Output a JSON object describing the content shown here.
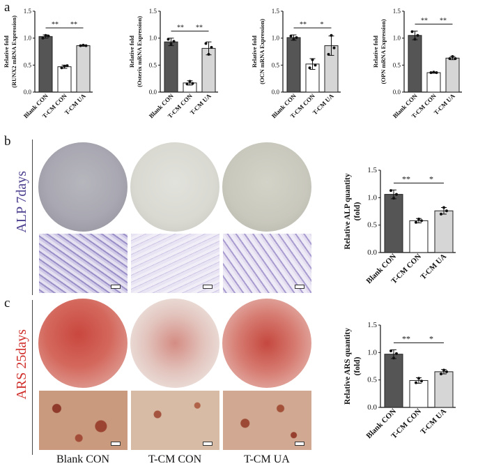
{
  "panels": {
    "a": "a",
    "b": "b",
    "c": "c"
  },
  "colors": {
    "dark": "#555555",
    "white": "#ffffff",
    "light": "#d6d6d6"
  },
  "chart_data": [
    {
      "id": "runx2",
      "type": "bar",
      "ylabel_line1": "Relative fold",
      "ylabel_line2": "(RUNX2 mRNA Expression)",
      "categories": [
        "Blank CON",
        "T-CM CON",
        "T-CM UA"
      ],
      "values": [
        1.03,
        0.47,
        0.86
      ],
      "errors": [
        0.03,
        0.03,
        0.01
      ],
      "points": [
        [
          1.0,
          1.05,
          1.04
        ],
        [
          0.45,
          0.48,
          0.49
        ],
        [
          0.86,
          0.87,
          0.86
        ]
      ],
      "ylim": [
        0,
        1.5
      ],
      "yticks": [
        "0.0",
        "0.5",
        "1.0",
        "1.5"
      ],
      "sig": [
        {
          "from": 0,
          "to": 1,
          "label": "**"
        },
        {
          "from": 1,
          "to": 2,
          "label": "**"
        }
      ]
    },
    {
      "id": "osterix",
      "type": "bar",
      "ylabel_line1": "Relative fold",
      "ylabel_line2": "(Osterix mRNA Expression)",
      "categories": [
        "Blank CON",
        "T-CM CON",
        "T-CM UA"
      ],
      "values": [
        0.93,
        0.17,
        0.81
      ],
      "errors": [
        0.07,
        0.04,
        0.12
      ],
      "points": [
        [
          0.98,
          0.89,
          0.94
        ],
        [
          0.15,
          0.2,
          0.16
        ],
        [
          0.9,
          0.7,
          0.83
        ]
      ],
      "ylim": [
        0,
        1.5
      ],
      "yticks": [
        "0.0",
        "0.5",
        "1.0",
        "1.5"
      ],
      "sig": [
        {
          "from": 0,
          "to": 1,
          "label": "**"
        },
        {
          "from": 1,
          "to": 2,
          "label": "**"
        }
      ]
    },
    {
      "id": "ocn",
      "type": "bar",
      "ylabel_line1": "Relative fold",
      "ylabel_line2": "(OCN mRNA Expression)",
      "categories": [
        "Blank CON",
        "T-CM CON",
        "T-CM UA"
      ],
      "values": [
        1.01,
        0.52,
        0.86
      ],
      "errors": [
        0.05,
        0.1,
        0.18
      ],
      "points": [
        [
          1.04,
          0.98,
          1.01
        ],
        [
          0.45,
          0.6,
          0.5
        ],
        [
          0.7,
          1.05,
          0.82
        ]
      ],
      "ylim": [
        0,
        1.5
      ],
      "yticks": [
        "0.0",
        "0.5",
        "1.0",
        "1.5"
      ],
      "sig": [
        {
          "from": 0,
          "to": 1,
          "label": "**"
        },
        {
          "from": 1,
          "to": 2,
          "label": "*"
        }
      ]
    },
    {
      "id": "opn",
      "type": "bar",
      "ylabel_line1": "Relative fold",
      "ylabel_line2": "(OPN mRNA Expression)",
      "categories": [
        "Blank CON",
        "T-CM CON",
        "T-CM UA"
      ],
      "values": [
        1.05,
        0.36,
        0.63
      ],
      "errors": [
        0.08,
        0.01,
        0.03
      ],
      "points": [
        [
          1.12,
          0.98,
          1.05
        ],
        [
          0.36,
          0.37,
          0.36
        ],
        [
          0.62,
          0.66,
          0.62
        ]
      ],
      "ylim": [
        0,
        1.5
      ],
      "yticks": [
        "0.0",
        "0.5",
        "1.0",
        "1.5"
      ],
      "sig": [
        {
          "from": 0,
          "to": 1,
          "label": "**"
        },
        {
          "from": 1,
          "to": 2,
          "label": "**"
        }
      ]
    },
    {
      "id": "alp",
      "type": "bar",
      "ylabel_line1": "Relative ALP quantity",
      "ylabel_line2": "(fold)",
      "categories": [
        "Blank CON",
        "T-CM CON",
        "T-CM UA"
      ],
      "values": [
        1.06,
        0.58,
        0.76
      ],
      "errors": [
        0.08,
        0.04,
        0.06
      ],
      "points": [
        [
          1.13,
          0.99,
          1.06
        ],
        [
          0.55,
          0.61,
          0.58
        ],
        [
          0.7,
          0.82,
          0.76
        ]
      ],
      "ylim": [
        0,
        1.5
      ],
      "yticks": [
        "0.0",
        "0.5",
        "1.0",
        "1.5"
      ],
      "sig": [
        {
          "from": 0,
          "to": 1,
          "label": "**"
        },
        {
          "from": 1,
          "to": 2,
          "label": "*"
        }
      ]
    },
    {
      "id": "ars",
      "type": "bar",
      "ylabel_line1": "Relative ARS quantity",
      "ylabel_line2": "(fold)",
      "categories": [
        "Blank CON",
        "T-CM CON",
        "T-CM UA"
      ],
      "values": [
        0.97,
        0.49,
        0.65
      ],
      "errors": [
        0.08,
        0.05,
        0.04
      ],
      "points": [
        [
          1.03,
          0.9,
          0.98
        ],
        [
          0.45,
          0.53,
          0.48
        ],
        [
          0.61,
          0.68,
          0.65
        ]
      ],
      "ylim": [
        0,
        1.5
      ],
      "yticks": [
        "0.0",
        "0.5",
        "1.0",
        "1.5"
      ],
      "sig": [
        {
          "from": 0,
          "to": 1,
          "label": "**"
        },
        {
          "from": 1,
          "to": 2,
          "label": "*"
        }
      ]
    }
  ],
  "stains": {
    "alp_label": "ALP 7days",
    "ars_label": "ARS 25days"
  },
  "columns": [
    "Blank CON",
    "T-CM CON",
    "T-CM UA"
  ]
}
